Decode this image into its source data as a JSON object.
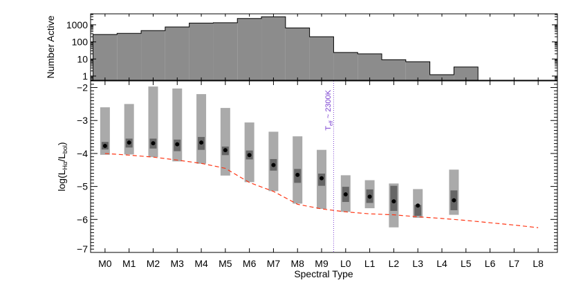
{
  "chart_data": [
    {
      "type": "bar",
      "panel": "top",
      "ylabel": "Number Active",
      "yscale": "log",
      "ylim": [
        0.57,
        4400
      ],
      "yticks": [
        1,
        10,
        100,
        1000
      ],
      "ytick_labels": [
        "1",
        "10",
        "100",
        "1000"
      ],
      "xlim": [
        -0.6,
        18.8
      ],
      "categories": [
        "M0",
        "M1",
        "M2",
        "M3",
        "M4",
        "M5",
        "M6",
        "M7",
        "M8",
        "M9",
        "L0",
        "L1",
        "L2",
        "L3",
        "L4",
        "L5",
        "L6",
        "L7",
        "L8"
      ],
      "values": [
        270,
        315,
        460,
        750,
        1270,
        1330,
        2350,
        2950,
        660,
        200,
        24,
        20,
        9,
        6.9,
        1.2,
        3.4,
        0,
        0,
        0
      ],
      "style": "step-filled",
      "fill_color": "#8c8c8c"
    },
    {
      "type": "box-range",
      "panel": "bottom",
      "xlabel": "Spectral Type",
      "ylabel_main": "log(L",
      "ylabel_sub1": "Hα",
      "ylabel_mid": "/L",
      "ylabel_sub2": "bol",
      "ylabel_end": ")",
      "ylim": [
        -7.0,
        -1.8
      ],
      "yticks": [
        -7,
        -6,
        -5,
        -4,
        -3,
        -2
      ],
      "ytick_labels": [
        "−7",
        "−6",
        "−5",
        "−4",
        "−3",
        "−2"
      ],
      "xlim": [
        -0.6,
        18.8
      ],
      "categories": [
        "M0",
        "M1",
        "M2",
        "M3",
        "M4",
        "M5",
        "M6",
        "M7",
        "M8",
        "M9",
        "L0",
        "L1",
        "L2",
        "L3",
        "L4",
        "L5",
        "L6",
        "L7",
        "L8"
      ],
      "points": [
        {
          "x": 0,
          "full": [
            -4.04,
            -2.6
          ],
          "inner": [
            -3.88,
            -3.65
          ],
          "median": -3.77
        },
        {
          "x": 1,
          "full": [
            -4.03,
            -2.5
          ],
          "inner": [
            -3.82,
            -3.55
          ],
          "median": -3.67
        },
        {
          "x": 2,
          "full": [
            -4.11,
            -1.97
          ],
          "inner": [
            -3.85,
            -3.55
          ],
          "median": -3.69
        },
        {
          "x": 3,
          "full": [
            -4.24,
            -2.03
          ],
          "inner": [
            -3.93,
            -3.58
          ],
          "median": -3.72
        },
        {
          "x": 4,
          "full": [
            -4.31,
            -2.2
          ],
          "inner": [
            -3.89,
            -3.5
          ],
          "median": -3.67
        },
        {
          "x": 5,
          "full": [
            -4.67,
            -2.62
          ],
          "inner": [
            -4.05,
            -3.79
          ],
          "median": -3.9
        },
        {
          "x": 6,
          "full": [
            -4.87,
            -3.06
          ],
          "inner": [
            -4.18,
            -3.91
          ],
          "median": -4.05
        },
        {
          "x": 7,
          "full": [
            -5.14,
            -3.34
          ],
          "inner": [
            -4.52,
            -4.17
          ],
          "median": -4.35
        },
        {
          "x": 8,
          "full": [
            -5.52,
            -3.48
          ],
          "inner": [
            -4.89,
            -4.47
          ],
          "median": -4.65
        },
        {
          "x": 9,
          "full": [
            -5.68,
            -3.89
          ],
          "inner": [
            -4.98,
            -4.61
          ],
          "median": -4.75
        },
        {
          "x": 10,
          "full": [
            -5.77,
            -4.66
          ],
          "inner": [
            -5.47,
            -5.01
          ],
          "median": -5.24
        },
        {
          "x": 11,
          "full": [
            -5.66,
            -4.81
          ],
          "inner": [
            -5.5,
            -5.09
          ],
          "median": -5.31
        },
        {
          "x": 12,
          "full": [
            -6.24,
            -4.91
          ],
          "inner": [
            -5.74,
            -4.98
          ],
          "median": -5.45
        },
        {
          "x": 13,
          "full": [
            -5.95,
            -5.08
          ],
          "inner": [
            -5.89,
            -5.56
          ],
          "median": -5.58
        },
        {
          "x": 14.5,
          "full": [
            -5.86,
            -4.49
          ],
          "inner": [
            -5.72,
            -5.12
          ],
          "median": -5.42
        }
      ],
      "limit_curve": {
        "x": [
          0,
          1,
          2,
          3,
          4,
          5,
          6,
          7,
          8,
          9,
          10,
          11,
          12,
          13,
          14,
          15,
          16,
          17,
          18
        ],
        "y": [
          -4.0,
          -4.05,
          -4.11,
          -4.2,
          -4.3,
          -4.45,
          -4.88,
          -5.15,
          -5.54,
          -5.68,
          -5.77,
          -5.83,
          -5.86,
          -5.92,
          -5.97,
          -6.03,
          -6.1,
          -6.17,
          -6.25
        ],
        "color": "#ff3311",
        "style": "dashed"
      },
      "vline": {
        "x": 9.5,
        "color": "#7a3fd0",
        "style": "dotted",
        "label_main": "T",
        "label_sub": "eff",
        "label_rest": " ~ 2300K"
      },
      "colors": {
        "full_range": "#aaaaaa",
        "inner_range": "#666666",
        "median": "#000000"
      }
    }
  ]
}
